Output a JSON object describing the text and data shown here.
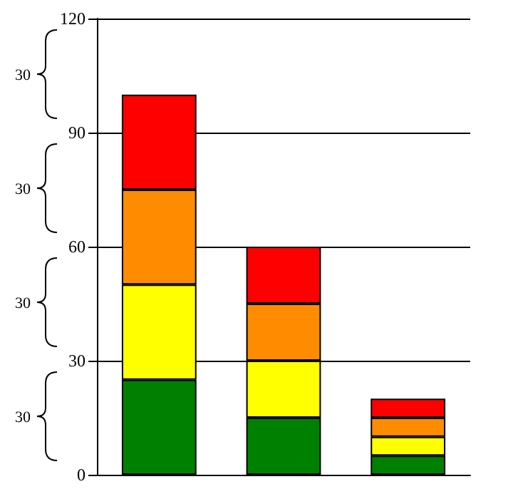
{
  "chart_data": {
    "type": "bar",
    "stacked": true,
    "categories": [
      null,
      null,
      null
    ],
    "series": [
      {
        "color": "#008000",
        "values": [
          25,
          15,
          5
        ]
      },
      {
        "color": "#ffff00",
        "values": [
          25,
          15,
          5
        ]
      },
      {
        "color": "#ff8c00",
        "values": [
          25,
          15,
          5
        ]
      },
      {
        "color": "#ff0000",
        "values": [
          25,
          15,
          5
        ]
      }
    ],
    "ylim": [
      0,
      120
    ],
    "yticks": [
      0,
      30,
      60,
      90,
      120
    ],
    "grid": "y",
    "annotations": [
      "30",
      "30",
      "30",
      "30"
    ]
  }
}
